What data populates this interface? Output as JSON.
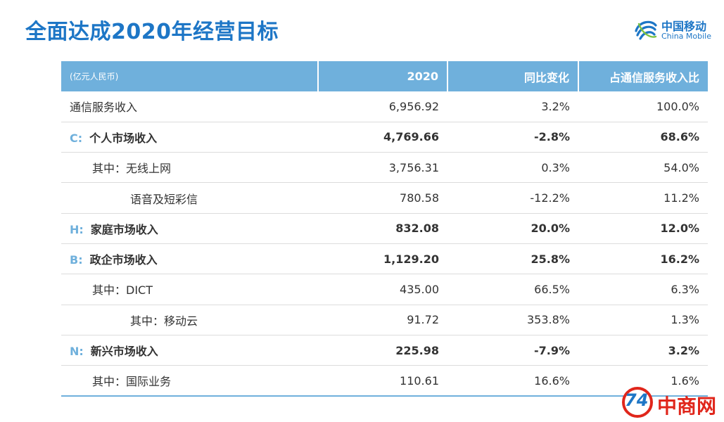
{
  "title": "全面达成2020年经营目标",
  "logo": {
    "cn": "中国移动",
    "en": "China Mobile",
    "icon": "china-mobile-logo-icon"
  },
  "table": {
    "headers": [
      "(亿元人民币)",
      "2020",
      "同比变化",
      "占通信服务收入比"
    ],
    "rows": [
      {
        "letter": "",
        "label": "通信服务收入",
        "v2020": "6,956.92",
        "yoy": "3.2%",
        "share": "100.0%",
        "bold": false,
        "indent": 0
      },
      {
        "letter": "C:",
        "label": "个人市场收入",
        "v2020": "4,769.66",
        "yoy": "-2.8%",
        "share": "68.6%",
        "bold": true,
        "indent": 0
      },
      {
        "letter": "",
        "label": "其中：无线上网",
        "v2020": "3,756.31",
        "yoy": "0.3%",
        "share": "54.0%",
        "bold": false,
        "indent": 1
      },
      {
        "letter": "",
        "label": "语音及短彩信",
        "v2020": "780.58",
        "yoy": "-12.2%",
        "share": "11.2%",
        "bold": false,
        "indent": 2
      },
      {
        "letter": "H:",
        "label": "家庭市场收入",
        "v2020": "832.08",
        "yoy": "20.0%",
        "share": "12.0%",
        "bold": true,
        "indent": 0
      },
      {
        "letter": "B:",
        "label": "政企市场收入",
        "v2020": "1,129.20",
        "yoy": "25.8%",
        "share": "16.2%",
        "bold": true,
        "indent": 0
      },
      {
        "letter": "",
        "label": "其中：DICT",
        "v2020": "435.00",
        "yoy": "66.5%",
        "share": "6.3%",
        "bold": false,
        "indent": 1
      },
      {
        "letter": "",
        "label": "其中：移动云",
        "v2020": "91.72",
        "yoy": "353.8%",
        "share": "1.3%",
        "bold": false,
        "indent": 2
      },
      {
        "letter": "N:",
        "label": "新兴市场收入",
        "v2020": "225.98",
        "yoy": "-7.9%",
        "share": "3.2%",
        "bold": true,
        "indent": 0
      },
      {
        "letter": "",
        "label": "其中：国际业务",
        "v2020": "110.61",
        "yoy": "16.6%",
        "share": "1.6%",
        "bold": false,
        "indent": 1
      }
    ]
  },
  "watermark": {
    "num": "74",
    "text": "中商网"
  },
  "colors": {
    "accent": "#1d76c6",
    "header": "#6fb0dc",
    "watermark": "#e0261b"
  }
}
